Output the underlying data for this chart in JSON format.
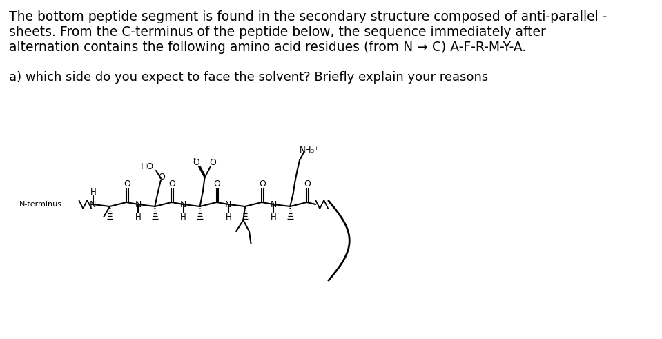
{
  "line1_pre": "The bottom peptide segment is found in the secondary structure composed of anti-parallel -",
  "line2": "sheets. From the C-terminus of the peptide below, the sequence immediately after",
  "line3": "alternation contains the following amino acid residues (from N → C) A-F-R-M-Y-A.",
  "line4": "a) which side do you expect to face the solvent? Briefly explain your reasons",
  "font_size": 13.5,
  "font_size_q": 13.0,
  "background": "#ffffff"
}
